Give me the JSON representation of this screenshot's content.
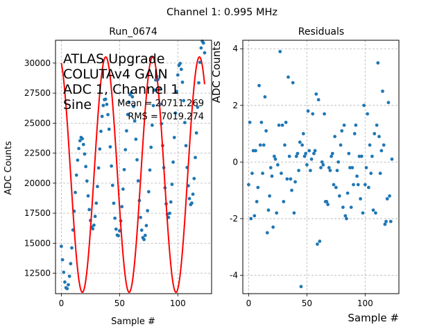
{
  "figure": {
    "suptitle": "Channel 1: 0.995 MHz"
  },
  "chart_data": [
    {
      "type": "scatter",
      "title": "Run_0674",
      "xlabel": "Sample #",
      "ylabel": "ADC Counts",
      "xlim": [
        -5,
        129
      ],
      "ylim": [
        10800,
        31900
      ],
      "xticks": [
        "0",
        "50",
        "100"
      ],
      "xtick_values": [
        0,
        50,
        100
      ],
      "yticks": [
        "12500",
        "15000",
        "17500",
        "20000",
        "22500",
        "25000",
        "27500",
        "30000"
      ],
      "ytick_values": [
        12500,
        15000,
        17500,
        20000,
        22500,
        25000,
        27500,
        30000
      ],
      "grid": true,
      "annotation_lines": [
        "ATLAS Upgrade",
        "COLUTAv4 GAIN",
        "ADC 1, Channel 1",
        "Sine"
      ],
      "stats_lines": [
        "Mean = 20711.269",
        "RMS = 7019.274"
      ],
      "series": [
        {
          "kind": "points",
          "color": "#1f77b4",
          "x": [
            0,
            1,
            2,
            3,
            4,
            5,
            6,
            7,
            8,
            9,
            10,
            11,
            12,
            13,
            14,
            15,
            16,
            17,
            18,
            19,
            20,
            21,
            22,
            23,
            24,
            25,
            26,
            27,
            28,
            29,
            30,
            31,
            32,
            33,
            34,
            35,
            36,
            37,
            38,
            39,
            40,
            41,
            42,
            43,
            44,
            45,
            46,
            47,
            48,
            49,
            50,
            51,
            52,
            53,
            54,
            55,
            56,
            57,
            58,
            59,
            60,
            61,
            62,
            63,
            64,
            65,
            66,
            67,
            68,
            69,
            70,
            71,
            72,
            73,
            74,
            75,
            76,
            77,
            78,
            79,
            80,
            81,
            82,
            83,
            84,
            85,
            86,
            87,
            88,
            89,
            90,
            91,
            92,
            93,
            94,
            95,
            96,
            97,
            98,
            99,
            100,
            101,
            102,
            103,
            104,
            105,
            106,
            107,
            108,
            109,
            110,
            111,
            112,
            113,
            114,
            115,
            116,
            117,
            118,
            119,
            120,
            121,
            122,
            123
          ],
          "y": [
            14741,
            13619,
            12579,
            11765,
            11293,
            11214,
            11542,
            12250,
            13298,
            14612,
            16099,
            17670,
            19226,
            20669,
            21915,
            22887,
            23533,
            23809,
            23700,
            23221,
            22427,
            21383,
            20180,
            18940,
            17798,
            16894,
            16340,
            16201,
            16503,
            17234,
            18336,
            19720,
            21268,
            22845,
            24318,
            25563,
            26469,
            26957,
            26989,
            26561,
            25706,
            24493,
            23026,
            21426,
            19818,
            18329,
            17081,
            16171,
            15675,
            15628,
            16033,
            16861,
            18047,
            19506,
            21128,
            22787,
            24357,
            25716,
            26752,
            27372,
            27527,
            27192,
            26387,
            25176,
            23656,
            21945,
            20192,
            18549,
            17144,
            16087,
            15459,
            15307,
            15651,
            16469,
            17708,
            19286,
            21091,
            22986,
            24824,
            26458,
            27749,
            28585,
            28890,
            28635,
            27839,
            26571,
            24950,
            23129,
            21289,
            19615,
            18278,
            17423,
            17146,
            17490,
            18435,
            19904,
            21755,
            23806,
            25841,
            27638,
            29005,
            29806,
            29966,
            29479,
            28407,
            26873,
            25045,
            23122,
            21306,
            19784,
            18716,
            18215,
            18339,
            19082,
            20385,
            22138,
            24183,
            26326,
            28353,
            30059,
            31259,
            31819,
            31671,
            30855
          ]
        },
        {
          "kind": "line",
          "color": "#ff0000",
          "model": {
            "mean": 20711.269,
            "amplitude": 9800,
            "period": 40.2,
            "phase_sample": 8.0
          }
        }
      ]
    },
    {
      "type": "scatter",
      "title": "Residuals",
      "xlabel": "Sample #",
      "ylabel": "ADC Counts",
      "xlim": [
        -5,
        129
      ],
      "ylim": [
        -4.65,
        4.3
      ],
      "xticks": [
        "0",
        "50",
        "100"
      ],
      "xtick_values": [
        0,
        50,
        100
      ],
      "yticks": [
        "-4",
        "-2",
        "0",
        "2",
        "4"
      ],
      "ytick_values": [
        -4,
        -2,
        0,
        2,
        4
      ],
      "grid": true,
      "series": [
        {
          "kind": "points",
          "color": "#1f77b4",
          "x": [
            0,
            1,
            2,
            3,
            4,
            5,
            6,
            7,
            8,
            9,
            10,
            11,
            12,
            13,
            14,
            15,
            16,
            17,
            18,
            19,
            20,
            21,
            22,
            23,
            24,
            25,
            26,
            27,
            28,
            29,
            30,
            31,
            32,
            33,
            34,
            35,
            36,
            37,
            38,
            39,
            40,
            41,
            42,
            43,
            44,
            45,
            46,
            47,
            48,
            49,
            50,
            51,
            52,
            53,
            54,
            55,
            56,
            57,
            58,
            59,
            60,
            61,
            62,
            63,
            64,
            65,
            66,
            67,
            68,
            69,
            70,
            71,
            72,
            73,
            74,
            75,
            76,
            77,
            78,
            79,
            80,
            81,
            82,
            83,
            84,
            85,
            86,
            87,
            88,
            89,
            90,
            91,
            92,
            93,
            94,
            95,
            96,
            97,
            98,
            99,
            100,
            101,
            102,
            103,
            104,
            105,
            106,
            107,
            108,
            109,
            110,
            111,
            112,
            113,
            114,
            115,
            116,
            117,
            118,
            119,
            120,
            121,
            122,
            123
          ],
          "y": [
            -0.8,
            1.4,
            -2.0,
            -0.4,
            0.4,
            -1.9,
            0.4,
            -1.4,
            -0.9,
            2.7,
            0.6,
            1.4,
            -0.4,
            0.6,
            2.3,
            1.1,
            -2.5,
            -1.7,
            -1.2,
            -0.2,
            -0.5,
            -2.3,
            0.2,
            0.1,
            -1.8,
            -0.1,
            1.3,
            3.9,
            -0.4,
            1.3,
            -1.4,
            0.6,
            1.4,
            -0.6,
            3.0,
            0.2,
            -0.6,
            -1.0,
            2.8,
            -1.8,
            -0.7,
            0.2,
            0.3,
            -0.3,
            0.7,
            -4.4,
            0.6,
            1.0,
            0.2,
            0.3,
            -0.1,
            1.8,
            0.4,
            -0.3,
            0.1,
            1.7,
            0.3,
            0.4,
            2.4,
            -2.9,
            2.2,
            -2.8,
            -0.2,
            0.0,
            -0.1,
            1.7,
            -1.4,
            -1.4,
            -1.5,
            -0.2,
            -0.3,
            0.2,
            0.3,
            -0.8,
            0.9,
            -0.9,
            -0.3,
            0.0,
            -1.2,
            0.6,
            1.1,
            -1.6,
            1.3,
            -1.9,
            -2.0,
            -1.1,
            0.3,
            -0.2,
            -1.6,
            -0.2,
            -0.8,
            1.0,
            1.3,
            -0.5,
            -0.8,
            0.2,
            -1.3,
            0.2,
            -1.8,
            2.0,
            -0.8,
            -0.2,
            1.7,
            -0.9,
            0.6,
            -0.4,
            0.2,
            -1.7,
            1.0,
            -1.8,
            1.3,
            3.5,
            0.9,
            -0.4,
            0.4,
            2.5,
            0.6,
            -2.2,
            -2.1,
            -1.3,
            2.1,
            -1.2,
            -2.1,
            0.1
          ]
        }
      ]
    }
  ]
}
